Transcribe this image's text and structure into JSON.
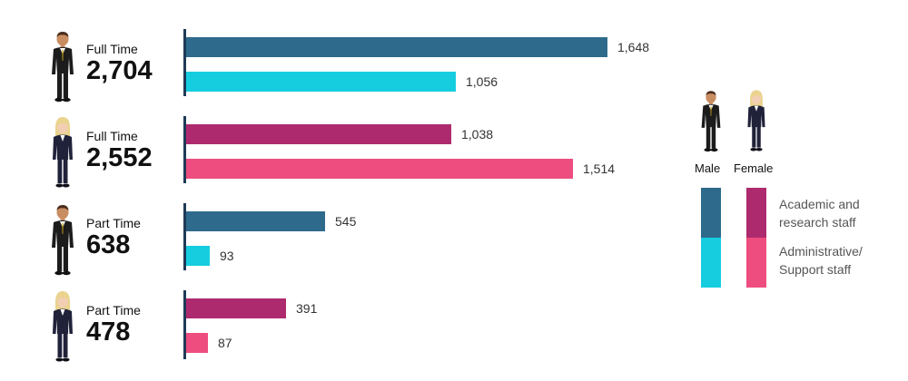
{
  "colors": {
    "male_academic": "#2e6a8b",
    "male_admin": "#16cde0",
    "female_academic": "#ae2a6e",
    "female_admin": "#ee4d7f",
    "axis": "#1f3b57"
  },
  "chart_data": {
    "type": "bar",
    "orientation": "horizontal",
    "groups": [
      {
        "figure": "male",
        "employment": "Full Time",
        "total": "2,704",
        "bars": [
          {
            "category": "academic",
            "value": 1648,
            "label": "1,648"
          },
          {
            "category": "admin",
            "value": 1056,
            "label": "1,056"
          }
        ]
      },
      {
        "figure": "female",
        "employment": "Full Time",
        "total": "2,552",
        "bars": [
          {
            "category": "academic",
            "value": 1038,
            "label": "1,038"
          },
          {
            "category": "admin",
            "value": 1514,
            "label": "1,514"
          }
        ]
      },
      {
        "figure": "male",
        "employment": "Part Time",
        "total": "638",
        "bars": [
          {
            "category": "academic",
            "value": 545,
            "label": "545"
          },
          {
            "category": "admin",
            "value": 93,
            "label": "93"
          }
        ]
      },
      {
        "figure": "female",
        "employment": "Part Time",
        "total": "478",
        "bars": [
          {
            "category": "academic",
            "value": 391,
            "label": "391"
          },
          {
            "category": "admin",
            "value": 87,
            "label": "87"
          }
        ]
      }
    ],
    "legend": {
      "male": "Male",
      "female": "Female",
      "academic": "Academic and research staff",
      "admin": "Administrative/ Support staff"
    },
    "xlim": [
      0,
      1648
    ]
  }
}
